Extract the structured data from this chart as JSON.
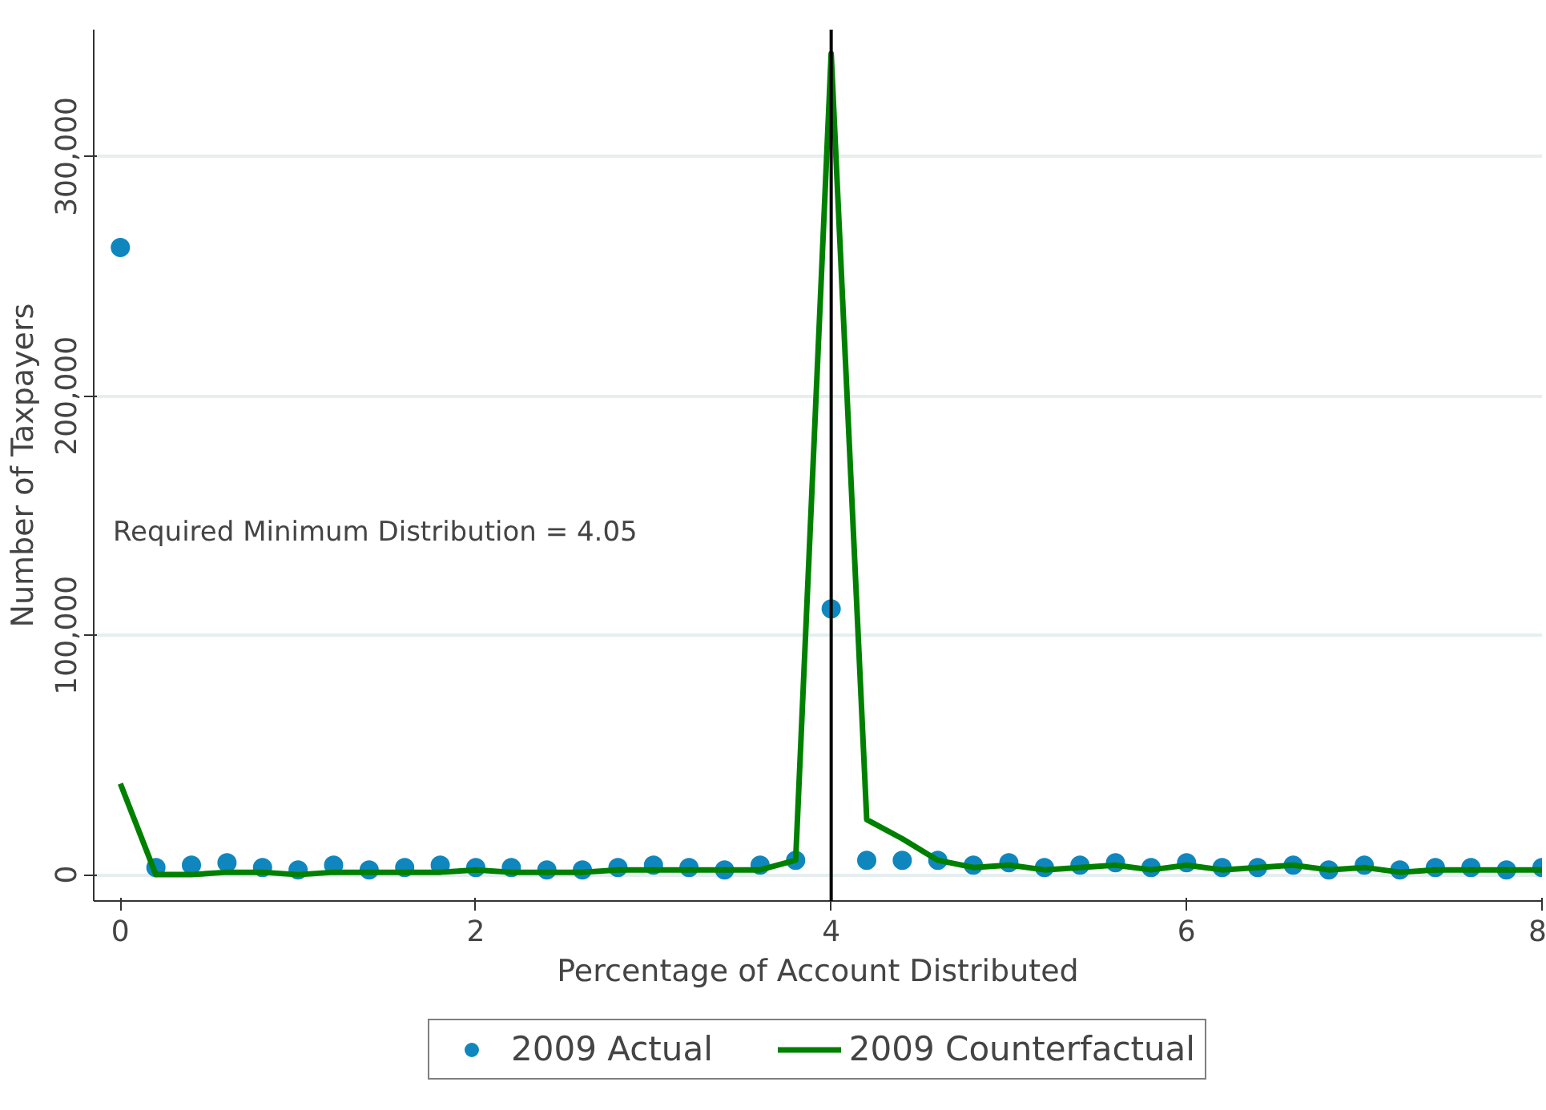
{
  "chart_data": {
    "type": "scatter",
    "xlabel": "Percentage of Account Distributed",
    "ylabel": "Number of Taxpayers",
    "x": [
      0,
      0.2,
      0.4,
      0.6,
      0.8,
      1.0,
      1.2,
      1.4,
      1.6,
      1.8,
      2.0,
      2.2,
      2.4,
      2.6,
      2.8,
      3.0,
      3.2,
      3.4,
      3.6,
      3.8,
      4.0,
      4.2,
      4.4,
      4.6,
      4.8,
      5.0,
      5.2,
      5.4,
      5.6,
      5.8,
      6.0,
      6.2,
      6.4,
      6.6,
      6.8,
      7.0,
      7.2,
      7.4,
      7.6,
      7.8,
      8.0
    ],
    "series": [
      {
        "name": "2009 Actual",
        "color": "#0f87be",
        "marker": "circle",
        "values": [
          262000,
          3000,
          4000,
          5000,
          3000,
          2000,
          4000,
          2000,
          3000,
          4000,
          3000,
          3000,
          2000,
          2000,
          3000,
          4000,
          3000,
          2000,
          4000,
          6000,
          111000,
          6000,
          6000,
          6000,
          4000,
          5000,
          3000,
          4000,
          5000,
          3000,
          5000,
          3000,
          3000,
          4000,
          2000,
          4000,
          2000,
          3000,
          3000,
          2000,
          3000
        ]
      },
      {
        "name": "2009 Counterfactual",
        "type": "line",
        "color": "#008000",
        "line_style": "solid",
        "values": [
          38000,
          0,
          0,
          1000,
          1000,
          0,
          1000,
          1000,
          1000,
          1000,
          2000,
          1000,
          1000,
          1000,
          2000,
          2000,
          2000,
          2000,
          2000,
          6000,
          343000,
          23000,
          15000,
          6000,
          3000,
          4000,
          2000,
          3000,
          4000,
          2000,
          4000,
          2000,
          3000,
          4000,
          2000,
          3000,
          1000,
          2000,
          2000,
          2000,
          2000
        ]
      }
    ],
    "xlim": [
      -0.15,
      8.0
    ],
    "xticks": [
      0,
      2,
      4,
      6,
      8
    ],
    "ylim": [
      -11000,
      353000
    ],
    "yticks": [
      {
        "value": 0,
        "label": "0"
      },
      {
        "value": 100000,
        "label": "100,000"
      },
      {
        "value": 200000,
        "label": "200,000"
      },
      {
        "value": 300000,
        "label": "300,000"
      }
    ],
    "grid": "y",
    "legend": "bottom",
    "ref_lines": [
      {
        "axis": "x",
        "value": 4,
        "color": "#000000",
        "line_style": "solid"
      }
    ],
    "annotations": [
      "Required Minimum Distribution = 4.05"
    ]
  }
}
